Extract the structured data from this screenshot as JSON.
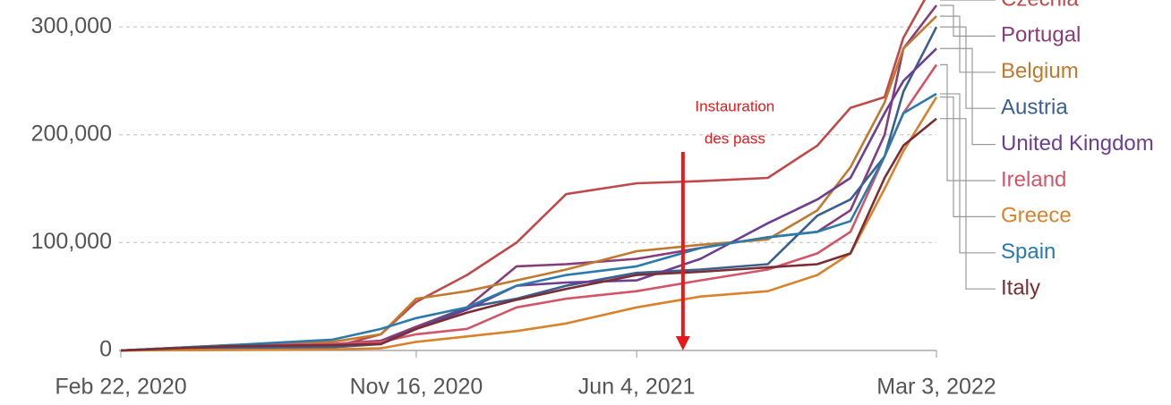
{
  "chart_data": {
    "type": "line",
    "x": [
      "2020-02-22",
      "2020-06-01",
      "2020-09-01",
      "2020-10-15",
      "2020-11-16",
      "2021-01-01",
      "2021-02-15",
      "2021-04-01",
      "2021-06-04",
      "2021-08-01",
      "2021-10-01",
      "2021-11-15",
      "2021-12-15",
      "2022-01-15",
      "2022-02-01",
      "2022-03-03"
    ],
    "series": [
      {
        "name": "Czechia",
        "color": "#c04a4a",
        "values": [
          0,
          1000,
          3000,
          15000,
          45000,
          70000,
          100000,
          145000,
          155000,
          157000,
          160000,
          190000,
          225000,
          235000,
          290000,
          345000
        ]
      },
      {
        "name": "Portugal",
        "color": "#883d7a",
        "values": [
          0,
          3000,
          6000,
          9000,
          22000,
          40000,
          78000,
          80000,
          85000,
          95000,
          105000,
          110000,
          130000,
          200000,
          280000,
          320000
        ]
      },
      {
        "name": "Belgium",
        "color": "#c0792e",
        "values": [
          0,
          5000,
          8000,
          15000,
          48000,
          55000,
          65000,
          75000,
          92000,
          98000,
          103000,
          130000,
          170000,
          230000,
          280000,
          310000
        ]
      },
      {
        "name": "Austria",
        "color": "#3b5f8f",
        "values": [
          0,
          2000,
          3000,
          6000,
          20000,
          40000,
          48000,
          60000,
          72000,
          75000,
          80000,
          125000,
          140000,
          180000,
          240000,
          300000
        ]
      },
      {
        "name": "United Kingdom",
        "color": "#6d3e91",
        "values": [
          0,
          4000,
          5000,
          8000,
          20000,
          38000,
          60000,
          63000,
          65000,
          85000,
          118000,
          140000,
          160000,
          220000,
          250000,
          280000
        ]
      },
      {
        "name": "Ireland",
        "color": "#d2556a",
        "values": [
          0,
          5000,
          6000,
          8000,
          15000,
          20000,
          40000,
          48000,
          55000,
          65000,
          75000,
          90000,
          110000,
          180000,
          220000,
          265000
        ]
      },
      {
        "name": "Greece",
        "color": "#d9822b",
        "values": [
          0,
          500,
          1000,
          2000,
          8000,
          13000,
          18000,
          25000,
          40000,
          50000,
          55000,
          70000,
          90000,
          150000,
          185000,
          235000
        ]
      },
      {
        "name": "Spain",
        "color": "#2a7bab",
        "values": [
          0,
          5000,
          10000,
          20000,
          30000,
          40000,
          60000,
          70000,
          78000,
          95000,
          105000,
          110000,
          120000,
          180000,
          220000,
          238000
        ]
      },
      {
        "name": "Italy",
        "color": "#7a2e33",
        "values": [
          0,
          4000,
          5000,
          6000,
          20000,
          35000,
          47000,
          57000,
          70000,
          73000,
          77000,
          80000,
          90000,
          160000,
          190000,
          215000
        ]
      }
    ],
    "xlim": [
      "2020-02-22",
      "2022-03-03"
    ],
    "xticks": [
      {
        "value": "2020-02-22",
        "label": "Feb 22, 2020"
      },
      {
        "value": "2020-11-16",
        "label": "Nov 16, 2020"
      },
      {
        "value": "2021-06-04",
        "label": "Jun 4, 2021"
      },
      {
        "value": "2022-03-03",
        "label": "Mar 3, 2022"
      }
    ],
    "ylim": [
      0,
      325000
    ],
    "yticks": [
      0,
      {
        "value": 100000,
        "label": "100,000"
      },
      {
        "value": 200000,
        "label": "200,000"
      },
      {
        "value": 300000,
        "label": "300,000"
      }
    ],
    "grid": true,
    "annotation": {
      "text": [
        "Instauration",
        "des pass"
      ],
      "date": "2021-07-16",
      "color": "#e8191a"
    }
  }
}
